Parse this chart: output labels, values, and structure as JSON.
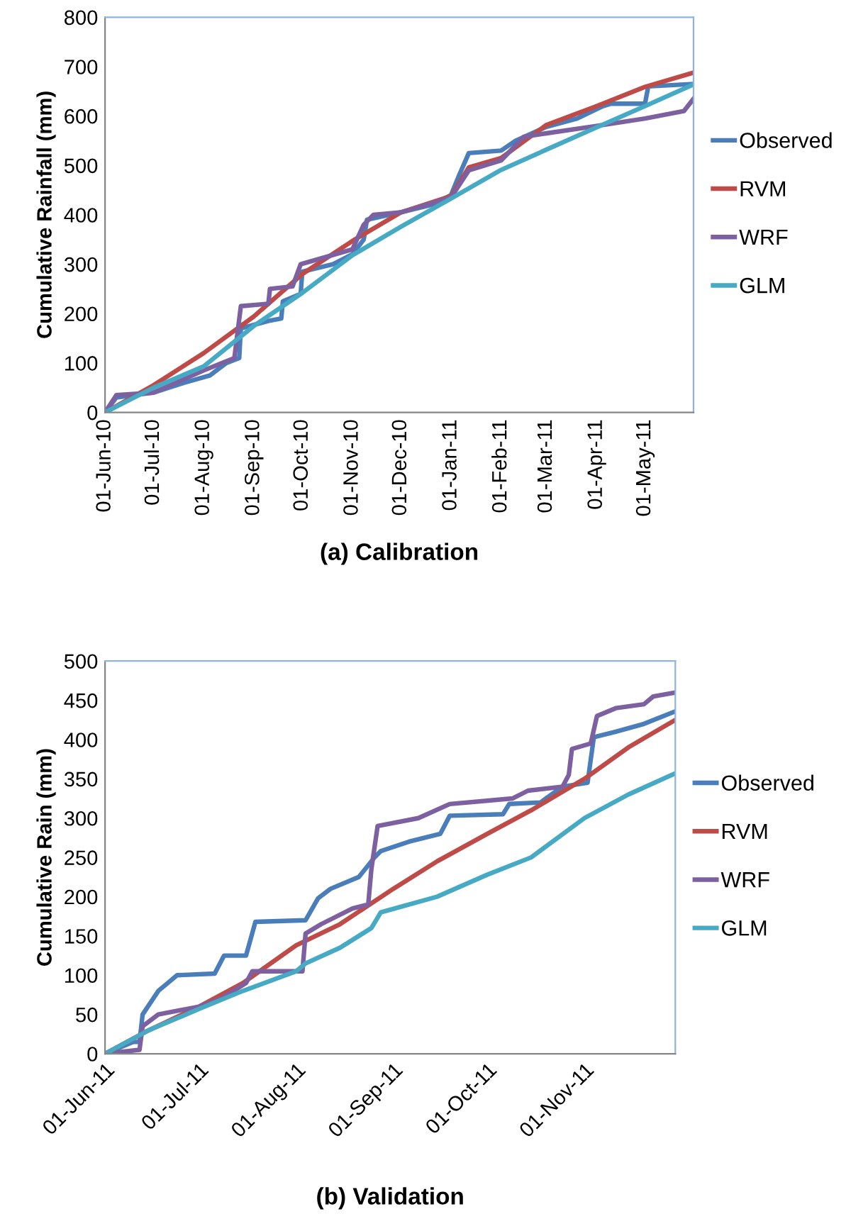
{
  "chart_data": [
    {
      "type": "line",
      "title": "(a) Calibration",
      "ylabel": "Cumulative Rainfall (mm)",
      "ylim": [
        0,
        800
      ],
      "yticks": [
        0,
        100,
        200,
        300,
        400,
        500,
        600,
        700,
        800
      ],
      "xlim": [
        "2010-06-01",
        "2011-05-31"
      ],
      "xticks": [
        {
          "value": "2010-06-01",
          "label": "01-Jun-10"
        },
        {
          "value": "2010-07-01",
          "label": "01-Jul-10"
        },
        {
          "value": "2010-08-01",
          "label": "01-Aug-10"
        },
        {
          "value": "2010-09-01",
          "label": "01-Sep-10"
        },
        {
          "value": "2010-10-01",
          "label": "01-Oct-10"
        },
        {
          "value": "2010-11-01",
          "label": "01-Nov-10"
        },
        {
          "value": "2010-12-01",
          "label": "01-Dec-10"
        },
        {
          "value": "2011-01-01",
          "label": "01-Jan-11"
        },
        {
          "value": "2011-02-01",
          "label": "01-Feb-11"
        },
        {
          "value": "2011-03-01",
          "label": "01-Mar-11"
        },
        {
          "value": "2011-04-01",
          "label": "01-Apr-11"
        },
        {
          "value": "2011-05-01",
          "label": "01-May-11"
        }
      ],
      "legend": "right",
      "grid": false,
      "marker": "none",
      "line_style": "solid",
      "series": [
        {
          "name": "Observed",
          "color": "#4a7ebb",
          "x": [
            "2010-06-01",
            "2010-06-08",
            "2010-07-01",
            "2010-07-20",
            "2010-08-05",
            "2010-08-15",
            "2010-08-23",
            "2010-08-24",
            "2010-09-10",
            "2010-09-18",
            "2010-09-19",
            "2010-09-30",
            "2010-10-01",
            "2010-10-20",
            "2010-11-01",
            "2010-11-08",
            "2010-11-10",
            "2010-12-01",
            "2010-12-20",
            "2011-01-01",
            "2011-01-06",
            "2011-01-12",
            "2011-02-01",
            "2011-02-10",
            "2011-03-01",
            "2011-03-20",
            "2011-04-05",
            "2011-04-10",
            "2011-05-01",
            "2011-05-03",
            "2011-05-31"
          ],
          "values": [
            0,
            30,
            40,
            60,
            75,
            100,
            110,
            170,
            185,
            190,
            225,
            240,
            285,
            300,
            320,
            350,
            390,
            405,
            420,
            440,
            480,
            525,
            530,
            550,
            578,
            595,
            620,
            625,
            625,
            660,
            665
          ]
        },
        {
          "name": "RVM",
          "color": "#be4b48",
          "x": [
            "2010-06-01",
            "2010-07-01",
            "2010-08-01",
            "2010-09-01",
            "2010-10-01",
            "2010-11-01",
            "2010-12-01",
            "2011-01-01",
            "2011-01-12",
            "2011-02-01",
            "2011-03-01",
            "2011-04-01",
            "2011-05-01",
            "2011-05-31"
          ],
          "values": [
            0,
            55,
            120,
            194,
            280,
            347,
            405,
            438,
            496,
            515,
            582,
            620,
            659,
            688
          ]
        },
        {
          "name": "WRF",
          "color": "#7d60a0",
          "x": [
            "2010-06-01",
            "2010-06-08",
            "2010-07-01",
            "2010-08-01",
            "2010-08-20",
            "2010-08-24",
            "2010-09-10",
            "2010-09-11",
            "2010-09-25",
            "2010-09-30",
            "2010-11-01",
            "2010-11-08",
            "2010-11-14",
            "2010-12-01",
            "2011-01-01",
            "2011-01-12",
            "2011-02-01",
            "2011-02-15",
            "2011-03-01",
            "2011-04-01",
            "2011-05-01",
            "2011-05-25",
            "2011-05-31"
          ],
          "values": [
            0,
            35,
            40,
            85,
            110,
            215,
            220,
            250,
            255,
            300,
            330,
            380,
            400,
            405,
            435,
            490,
            510,
            558,
            565,
            580,
            595,
            610,
            635
          ]
        },
        {
          "name": "GLM",
          "color": "#46aac5",
          "x": [
            "2010-06-01",
            "2010-07-01",
            "2010-08-01",
            "2010-09-01",
            "2010-10-01",
            "2010-11-01",
            "2010-12-01",
            "2011-01-01",
            "2011-02-01",
            "2011-03-01",
            "2011-04-01",
            "2011-05-01",
            "2011-05-31"
          ],
          "values": [
            0,
            50,
            93,
            175,
            242,
            318,
            376,
            433,
            491,
            532,
            577,
            620,
            664
          ]
        }
      ]
    },
    {
      "type": "line",
      "title": "(b) Validation",
      "ylabel": "Cumulative Rain (mm)",
      "ylim": [
        0,
        500
      ],
      "yticks": [
        0,
        50,
        100,
        150,
        200,
        250,
        300,
        350,
        400,
        450,
        500
      ],
      "xlim": [
        "2011-06-01",
        "2011-11-30"
      ],
      "xticks": [
        {
          "value": "2011-06-01",
          "label": "01-Jun-11"
        },
        {
          "value": "2011-07-01",
          "label": "01-Jul-11"
        },
        {
          "value": "2011-08-01",
          "label": "01-Aug-11"
        },
        {
          "value": "2011-09-01",
          "label": "01-Sep-11"
        },
        {
          "value": "2011-10-01",
          "label": "01-Oct-11"
        },
        {
          "value": "2011-11-01",
          "label": "01-Nov-11"
        }
      ],
      "legend": "right",
      "grid": false,
      "marker": "none",
      "line_style": "solid",
      "series": [
        {
          "name": "Observed",
          "color": "#4a7ebb",
          "x": [
            "2011-06-01",
            "2011-06-10",
            "2011-06-12",
            "2011-06-13",
            "2011-06-18",
            "2011-06-21",
            "2011-06-24",
            "2011-07-06",
            "2011-07-09",
            "2011-07-16",
            "2011-07-19",
            "2011-08-04",
            "2011-08-08",
            "2011-08-12",
            "2011-08-21",
            "2011-08-26",
            "2011-08-28",
            "2011-09-06",
            "2011-09-16",
            "2011-09-19",
            "2011-10-06",
            "2011-10-08",
            "2011-10-18",
            "2011-10-25",
            "2011-11-02",
            "2011-11-04",
            "2011-11-11",
            "2011-11-20",
            "2011-11-30"
          ],
          "values": [
            0,
            15,
            15,
            50,
            80,
            90,
            100,
            102,
            125,
            125,
            168,
            170,
            198,
            210,
            225,
            250,
            258,
            270,
            280,
            303,
            305,
            318,
            320,
            340,
            345,
            403,
            410,
            420,
            436
          ]
        },
        {
          "name": "RVM",
          "color": "#be4b48",
          "x": [
            "2011-06-01",
            "2011-06-15",
            "2011-07-01",
            "2011-07-15",
            "2011-08-01",
            "2011-08-15",
            "2011-09-01",
            "2011-09-15",
            "2011-10-01",
            "2011-10-15",
            "2011-11-01",
            "2011-11-15",
            "2011-11-30"
          ],
          "values": [
            0,
            30,
            60,
            90,
            138,
            165,
            210,
            245,
            280,
            310,
            350,
            390,
            425
          ]
        },
        {
          "name": "WRF",
          "color": "#7d60a0",
          "x": [
            "2011-06-01",
            "2011-06-12",
            "2011-06-13",
            "2011-06-18",
            "2011-07-01",
            "2011-07-08",
            "2011-07-16",
            "2011-07-18",
            "2011-08-03",
            "2011-08-04",
            "2011-08-09",
            "2011-08-19",
            "2011-08-24",
            "2011-08-25",
            "2011-08-27",
            "2011-09-09",
            "2011-09-19",
            "2011-10-09",
            "2011-10-14",
            "2011-10-25",
            "2011-10-27",
            "2011-10-28",
            "2011-11-03",
            "2011-11-05",
            "2011-11-11",
            "2011-11-20",
            "2011-11-23",
            "2011-11-30"
          ],
          "values": [
            0,
            5,
            35,
            50,
            60,
            70,
            90,
            105,
            105,
            153,
            165,
            185,
            190,
            235,
            290,
            300,
            318,
            325,
            335,
            340,
            355,
            388,
            395,
            430,
            440,
            445,
            455,
            460
          ]
        },
        {
          "name": "GLM",
          "color": "#46aac5",
          "x": [
            "2011-06-01",
            "2011-06-15",
            "2011-07-01",
            "2011-07-15",
            "2011-08-01",
            "2011-08-04",
            "2011-08-15",
            "2011-08-25",
            "2011-08-28",
            "2011-09-15",
            "2011-10-01",
            "2011-10-15",
            "2011-11-01",
            "2011-11-15",
            "2011-11-30"
          ],
          "values": [
            0,
            30,
            57,
            80,
            105,
            115,
            135,
            160,
            180,
            200,
            228,
            250,
            300,
            330,
            357
          ]
        }
      ]
    }
  ]
}
